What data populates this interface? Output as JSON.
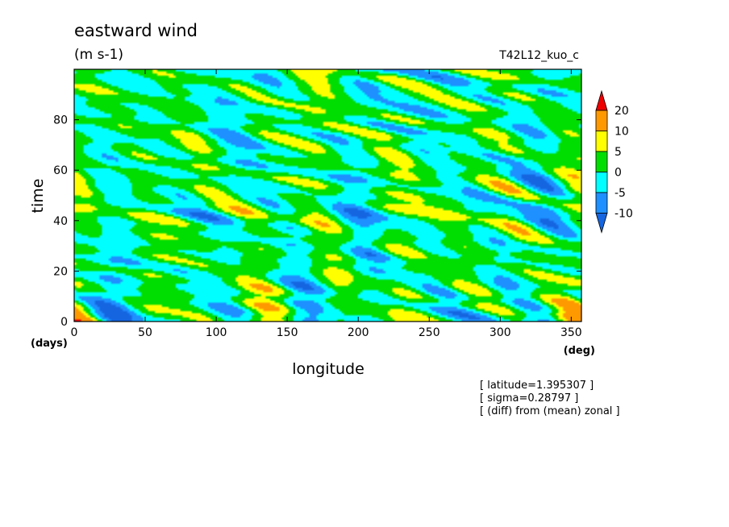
{
  "chart_data": {
    "type": "heatmap",
    "title": "eastward wind",
    "units": "(m s-1)",
    "run_label": "T42L12_kuo_c",
    "xlabel": "longitude",
    "ylabel": "time",
    "x_unit": "(deg)",
    "y_unit": "(days)",
    "xlim": [
      0,
      357.1875
    ],
    "ylim": [
      0,
      100
    ],
    "xticks": [
      0,
      50,
      100,
      150,
      200,
      250,
      300,
      350
    ],
    "yticks": [
      0,
      20,
      40,
      60,
      80
    ],
    "colorbar": {
      "levels": [
        -10,
        -5,
        0,
        5,
        10,
        20
      ],
      "labels": [
        "20",
        "10",
        "5",
        "0",
        "-5",
        "-10"
      ],
      "colors": [
        "#1565e0",
        "#1e90ff",
        "#00ffff",
        "#00dd00",
        "#ffff00",
        "#ff9900",
        "#ee0000"
      ],
      "extend": "both"
    },
    "dominant_pattern": "eastward-propagating anomaly bands; mostly -5 to 5 with patches of 5 to 10 (yellow/orange) and -10 to -5 (blue)",
    "annotations": [
      "[ latitude=1.395307 ]",
      "[ sigma=0.28797 ]",
      "[ (diff) from (mean) zonal ]"
    ]
  }
}
